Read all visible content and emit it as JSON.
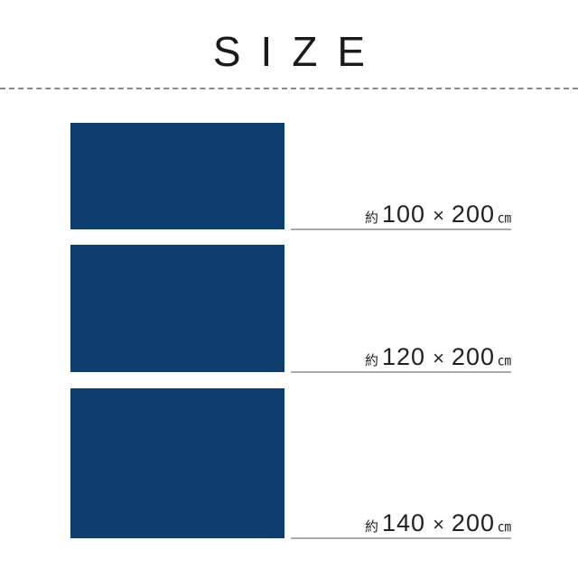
{
  "title": "SIZE",
  "colors": {
    "rect_fill": "#0e3d6f",
    "divider": "#8a8a8a",
    "underline": "#a8a8a8"
  },
  "sizes": [
    {
      "prefix": "約",
      "width": "100",
      "times": "×",
      "height": "200",
      "unit": "㎝"
    },
    {
      "prefix": "約",
      "width": "120",
      "times": "×",
      "height": "200",
      "unit": "㎝"
    },
    {
      "prefix": "約",
      "width": "140",
      "times": "×",
      "height": "200",
      "unit": "㎝"
    }
  ]
}
